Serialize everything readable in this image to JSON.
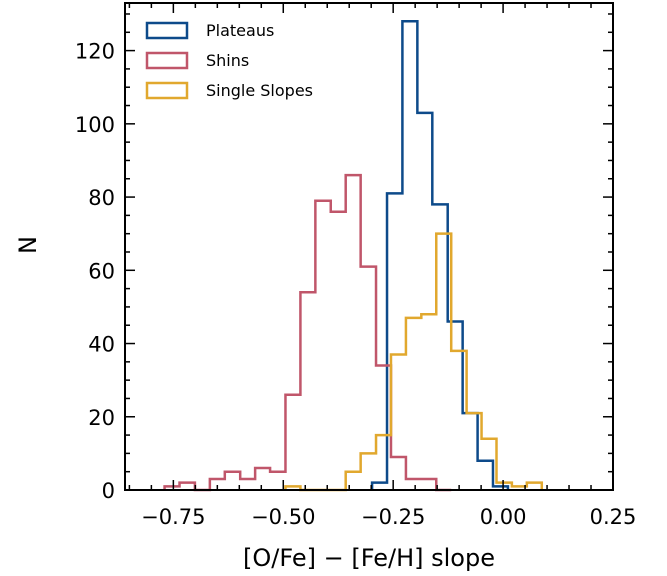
{
  "chart_data": {
    "type": "histogram",
    "xlabel": "[O/Fe] − [Fe/H] slope",
    "ylabel": "N",
    "xlim": [
      -0.86,
      0.25
    ],
    "ylim": [
      0,
      133
    ],
    "x_ticks": [
      -0.75,
      -0.5,
      -0.25,
      0.0,
      0.25
    ],
    "x_tick_labels": [
      "−0.75",
      "−0.50",
      "−0.25",
      "0.00",
      "0.25"
    ],
    "y_ticks": [
      0,
      20,
      40,
      60,
      80,
      100,
      120
    ],
    "y_tick_labels": [
      "0",
      "20",
      "40",
      "60",
      "80",
      "100",
      "120"
    ],
    "grid": false,
    "legend_position": "top-left",
    "bin_width": 0.0343,
    "series": [
      {
        "name": "Plateaus",
        "color": "#0d4a8a",
        "x_edges": [
          -0.298,
          -0.264,
          -0.229,
          -0.195,
          -0.161,
          -0.126,
          -0.092,
          -0.058,
          -0.023,
          0.011
        ],
        "counts": [
          2,
          81,
          128,
          103,
          78,
          46,
          21,
          8,
          1
        ]
      },
      {
        "name": "Shins",
        "color": "#c0566a",
        "x_edges": [
          -0.77,
          -0.736,
          -0.701,
          -0.667,
          -0.633,
          -0.598,
          -0.564,
          -0.53,
          -0.495,
          -0.461,
          -0.427,
          -0.392,
          -0.358,
          -0.324,
          -0.289,
          -0.255,
          -0.221,
          -0.186,
          -0.152,
          -0.118
        ],
        "counts": [
          1,
          2,
          0,
          3,
          5,
          3,
          6,
          5,
          26,
          54,
          79,
          76,
          86,
          61,
          34,
          9,
          3,
          3,
          0
        ]
      },
      {
        "name": "Single Slopes",
        "color": "#e1a82e",
        "x_edges": [
          -0.495,
          -0.461,
          -0.427,
          -0.392,
          -0.358,
          -0.324,
          -0.289,
          -0.255,
          -0.221,
          -0.186,
          -0.152,
          -0.118,
          -0.083,
          -0.049,
          -0.015,
          0.02,
          0.054,
          0.088
        ],
        "counts": [
          1,
          0,
          0,
          0,
          5,
          10,
          15,
          37,
          47,
          48,
          70,
          38,
          21,
          14,
          2,
          1,
          2
        ]
      }
    ]
  }
}
